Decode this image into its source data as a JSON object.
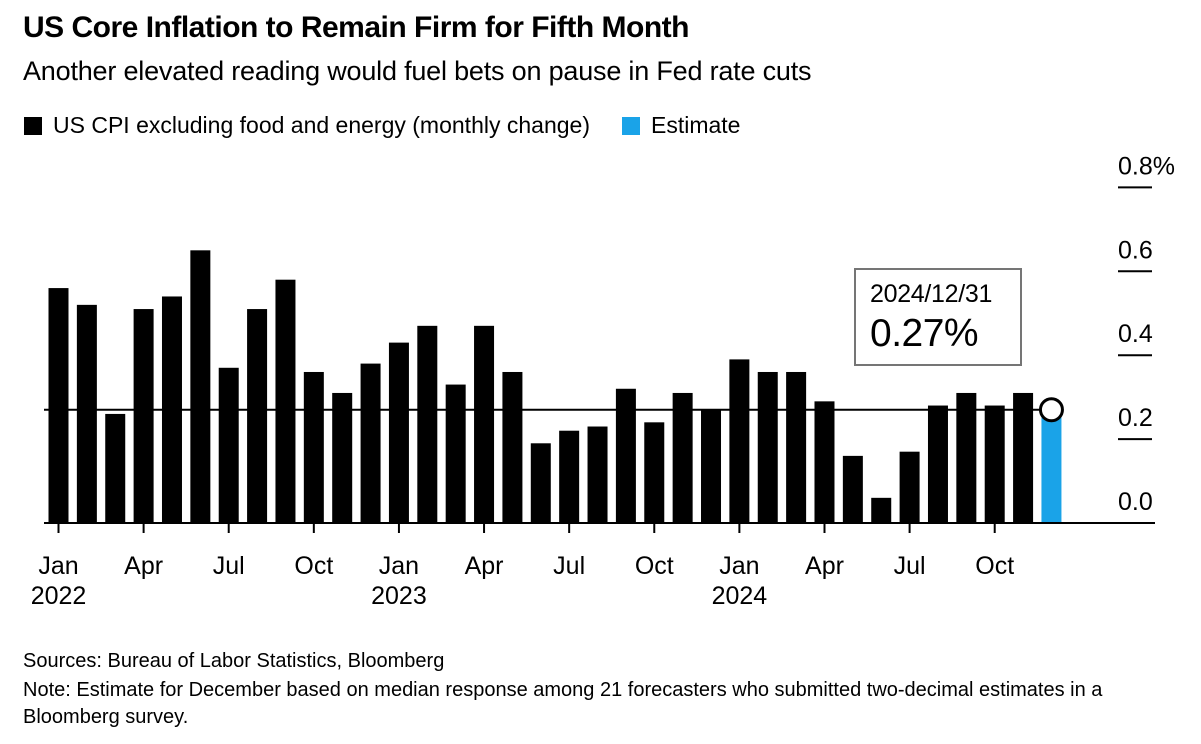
{
  "header": {
    "title": "US Core Inflation to Remain Firm for Fifth Month",
    "subtitle": "Another elevated reading would fuel bets on pause in Fed rate cuts"
  },
  "legend": [
    {
      "label": "US CPI excluding food and energy (monthly change)",
      "color": "#000000"
    },
    {
      "label": "Estimate",
      "color": "#1aa3e8"
    }
  ],
  "annotation": {
    "date": "2024/12/31",
    "value": "0.27%"
  },
  "footer": {
    "sources": "Sources: Bureau of Labor Statistics, Bloomberg",
    "note": "Note: Estimate for December based on median response among 21 forecasters who submitted two-decimal estimates in a Bloomberg survey."
  },
  "chart_data": {
    "type": "bar",
    "title": "US Core Inflation to Remain Firm for Fifth Month",
    "series_name": "US CPI excluding food and energy (monthly change)",
    "categories": [
      "2022-01",
      "2022-02",
      "2022-03",
      "2022-04",
      "2022-05",
      "2022-06",
      "2022-07",
      "2022-08",
      "2022-09",
      "2022-10",
      "2022-11",
      "2022-12",
      "2023-01",
      "2023-02",
      "2023-03",
      "2023-04",
      "2023-05",
      "2023-06",
      "2023-07",
      "2023-08",
      "2023-09",
      "2023-10",
      "2023-11",
      "2023-12",
      "2024-01",
      "2024-02",
      "2024-03",
      "2024-04",
      "2024-05",
      "2024-06",
      "2024-07",
      "2024-08",
      "2024-09",
      "2024-10",
      "2024-11",
      "2024-12"
    ],
    "values": [
      0.56,
      0.52,
      0.26,
      0.51,
      0.54,
      0.65,
      0.37,
      0.51,
      0.58,
      0.36,
      0.31,
      0.38,
      0.43,
      0.47,
      0.33,
      0.47,
      0.36,
      0.19,
      0.22,
      0.23,
      0.32,
      0.24,
      0.31,
      0.27,
      0.39,
      0.36,
      0.36,
      0.29,
      0.16,
      0.06,
      0.17,
      0.28,
      0.31,
      0.28,
      0.31,
      0.27
    ],
    "estimate_index": 35,
    "estimate_value": 0.27,
    "estimate_date": "2024/12/31",
    "reference_line": 0.27,
    "unit": "%",
    "ylim": [
      0,
      0.8
    ],
    "yticks": [
      {
        "v": 0.8,
        "label": "0.8%"
      },
      {
        "v": 0.6,
        "label": "0.6"
      },
      {
        "v": 0.4,
        "label": "0.4"
      },
      {
        "v": 0.2,
        "label": "0.2"
      },
      {
        "v": 0.0,
        "label": "0.0"
      }
    ],
    "xticks": [
      {
        "i": 0,
        "month": "Jan",
        "year": "2022"
      },
      {
        "i": 3,
        "month": "Apr"
      },
      {
        "i": 6,
        "month": "Jul"
      },
      {
        "i": 9,
        "month": "Oct"
      },
      {
        "i": 12,
        "month": "Jan",
        "year": "2023"
      },
      {
        "i": 15,
        "month": "Apr"
      },
      {
        "i": 18,
        "month": "Jul"
      },
      {
        "i": 21,
        "month": "Oct"
      },
      {
        "i": 24,
        "month": "Jan",
        "year": "2024"
      },
      {
        "i": 27,
        "month": "Apr"
      },
      {
        "i": 30,
        "month": "Jul"
      },
      {
        "i": 33,
        "month": "Oct"
      }
    ],
    "colors": {
      "bar": "#000000",
      "estimate": "#1aa3e8",
      "marker_fill": "#ffffff",
      "marker_stroke": "#000000"
    },
    "legend_position": "top",
    "grid": false
  }
}
